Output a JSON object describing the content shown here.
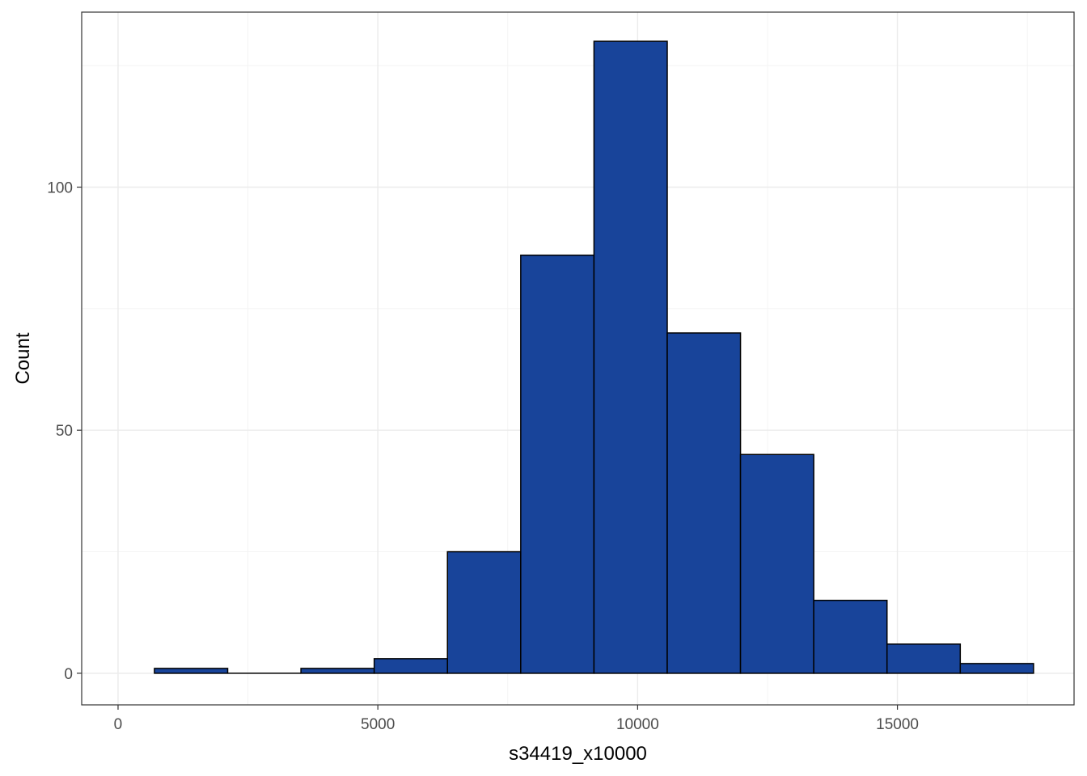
{
  "chart_data": {
    "type": "bar",
    "subtype": "histogram",
    "xlabel": "s34419_x10000",
    "ylabel": "Count",
    "xlim": [
      -700,
      18400
    ],
    "ylim": [
      -6.5,
      136
    ],
    "x_ticks": [
      0,
      5000,
      10000,
      15000
    ],
    "x_tick_labels": [
      "0",
      "5000",
      "10000",
      "15000"
    ],
    "y_ticks": [
      0,
      50,
      100
    ],
    "y_tick_labels": [
      "0",
      "50",
      "100"
    ],
    "grid": true,
    "legend": "none",
    "bins": [
      {
        "x0": 700,
        "x1": 2110,
        "count": 1
      },
      {
        "x0": 2110,
        "x1": 3520,
        "count": 0
      },
      {
        "x0": 3520,
        "x1": 4930,
        "count": 1
      },
      {
        "x0": 4930,
        "x1": 6340,
        "count": 3
      },
      {
        "x0": 6340,
        "x1": 7750,
        "count": 25
      },
      {
        "x0": 7750,
        "x1": 9160,
        "count": 86
      },
      {
        "x0": 9160,
        "x1": 10570,
        "count": 130
      },
      {
        "x0": 10570,
        "x1": 11980,
        "count": 70
      },
      {
        "x0": 11980,
        "x1": 13390,
        "count": 45
      },
      {
        "x0": 13390,
        "x1": 14800,
        "count": 15
      },
      {
        "x0": 14800,
        "x1": 16210,
        "count": 6
      },
      {
        "x0": 16210,
        "x1": 17620,
        "count": 2
      }
    ]
  },
  "colors": {
    "bar_fill": "#18449a",
    "bar_stroke": "#000000",
    "grid_major": "#ebebeb",
    "grid_minor": "#f4f4f4",
    "panel_border": "#333333"
  }
}
